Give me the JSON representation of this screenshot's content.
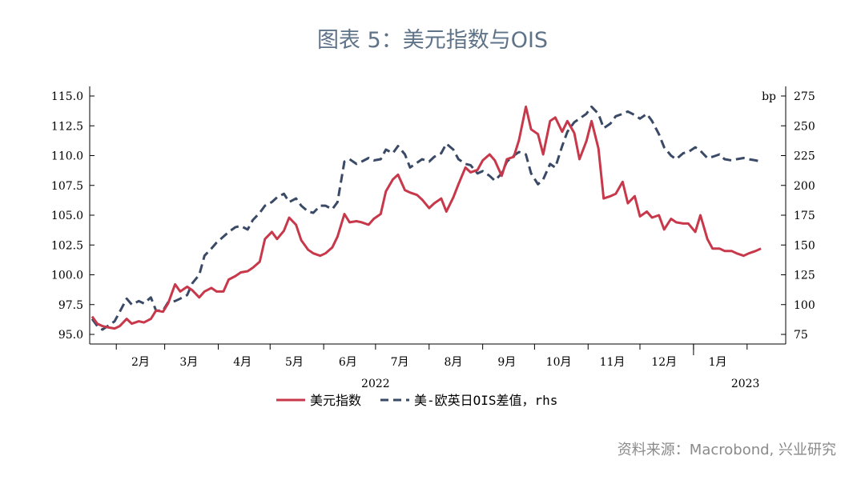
{
  "title": "图表 5：美元指数与OIS",
  "source": "资料来源：Macrobond, 兴业研究",
  "colors": {
    "dxy": "#c8384b",
    "ois": "#3a4a66",
    "title": "#5f7388"
  },
  "chart_data": {
    "type": "line",
    "y_left": {
      "min": 95,
      "max": 115,
      "ticks": [
        "95.0",
        "97.5",
        "100.0",
        "102.5",
        "105.0",
        "107.5",
        "110.0",
        "112.5",
        "115.0"
      ]
    },
    "y_right": {
      "min": 75,
      "max": 275,
      "ticks": [
        "75",
        "100",
        "125",
        "150",
        "175",
        "200",
        "225",
        "250",
        "275"
      ],
      "unit": "bp"
    },
    "x_domain": [
      "2022-01-18",
      "2023-02-15"
    ],
    "month_labels": [
      {
        "label": "2月",
        "date": "2022-02-15"
      },
      {
        "label": "3月",
        "date": "2022-03-15"
      },
      {
        "label": "4月",
        "date": "2022-04-15"
      },
      {
        "label": "5月",
        "date": "2022-05-15"
      },
      {
        "label": "6月",
        "date": "2022-06-15"
      },
      {
        "label": "7月",
        "date": "2022-07-15"
      },
      {
        "label": "8月",
        "date": "2022-08-15"
      },
      {
        "label": "9月",
        "date": "2022-09-15"
      },
      {
        "label": "10月",
        "date": "2022-10-15"
      },
      {
        "label": "11月",
        "date": "2022-11-15"
      },
      {
        "label": "12月",
        "date": "2022-12-15"
      },
      {
        "label": "1月",
        "date": "2023-01-15"
      }
    ],
    "month_ticks": [
      "2022-02-01",
      "2022-03-01",
      "2022-04-01",
      "2022-05-01",
      "2022-06-01",
      "2022-07-01",
      "2022-08-01",
      "2022-09-01",
      "2022-10-01",
      "2022-11-01",
      "2022-12-01",
      "2023-01-01",
      "2023-02-01"
    ],
    "year_labels": [
      {
        "label": "2022",
        "date": "2022-07-01"
      },
      {
        "label": "2023",
        "date": "2023-01-31"
      }
    ],
    "year_tick": "2023-01-01",
    "series": [
      {
        "name": "美元指数",
        "axis": "left",
        "style": "solid",
        "points": [
          [
            "2022-01-18",
            96.5
          ],
          [
            "2022-01-21",
            95.9
          ],
          [
            "2022-01-24",
            95.7
          ],
          [
            "2022-01-27",
            95.6
          ],
          [
            "2022-01-31",
            95.5
          ],
          [
            "2022-02-03",
            95.7
          ],
          [
            "2022-02-07",
            96.3
          ],
          [
            "2022-02-10",
            95.9
          ],
          [
            "2022-02-14",
            96.1
          ],
          [
            "2022-02-17",
            96.0
          ],
          [
            "2022-02-21",
            96.3
          ],
          [
            "2022-02-24",
            97.0
          ],
          [
            "2022-02-28",
            96.9
          ],
          [
            "2022-03-03",
            97.6
          ],
          [
            "2022-03-07",
            99.2
          ],
          [
            "2022-03-10",
            98.6
          ],
          [
            "2022-03-14",
            99.0
          ],
          [
            "2022-03-17",
            98.7
          ],
          [
            "2022-03-21",
            98.1
          ],
          [
            "2022-03-24",
            98.6
          ],
          [
            "2022-03-28",
            98.9
          ],
          [
            "2022-03-31",
            98.6
          ],
          [
            "2022-04-04",
            98.6
          ],
          [
            "2022-04-07",
            99.6
          ],
          [
            "2022-04-11",
            99.9
          ],
          [
            "2022-04-14",
            100.2
          ],
          [
            "2022-04-18",
            100.3
          ],
          [
            "2022-04-21",
            100.6
          ],
          [
            "2022-04-25",
            101.1
          ],
          [
            "2022-04-28",
            103.0
          ],
          [
            "2022-05-02",
            103.6
          ],
          [
            "2022-05-05",
            103.0
          ],
          [
            "2022-05-09",
            103.7
          ],
          [
            "2022-05-12",
            104.8
          ],
          [
            "2022-05-16",
            104.2
          ],
          [
            "2022-05-19",
            102.9
          ],
          [
            "2022-05-23",
            102.1
          ],
          [
            "2022-05-26",
            101.8
          ],
          [
            "2022-05-30",
            101.6
          ],
          [
            "2022-06-02",
            101.8
          ],
          [
            "2022-06-06",
            102.3
          ],
          [
            "2022-06-09",
            103.2
          ],
          [
            "2022-06-13",
            105.1
          ],
          [
            "2022-06-16",
            104.4
          ],
          [
            "2022-06-20",
            104.5
          ],
          [
            "2022-06-23",
            104.4
          ],
          [
            "2022-06-27",
            104.2
          ],
          [
            "2022-06-30",
            104.7
          ],
          [
            "2022-07-04",
            105.1
          ],
          [
            "2022-07-07",
            107.0
          ],
          [
            "2022-07-11",
            108.0
          ],
          [
            "2022-07-14",
            108.4
          ],
          [
            "2022-07-18",
            107.1
          ],
          [
            "2022-07-21",
            106.9
          ],
          [
            "2022-07-25",
            106.7
          ],
          [
            "2022-07-28",
            106.3
          ],
          [
            "2022-08-01",
            105.6
          ],
          [
            "2022-08-04",
            106.0
          ],
          [
            "2022-08-08",
            106.4
          ],
          [
            "2022-08-11",
            105.3
          ],
          [
            "2022-08-15",
            106.5
          ],
          [
            "2022-08-18",
            107.6
          ],
          [
            "2022-08-22",
            109.0
          ],
          [
            "2022-08-25",
            108.6
          ],
          [
            "2022-08-29",
            108.8
          ],
          [
            "2022-09-01",
            109.6
          ],
          [
            "2022-09-05",
            110.1
          ],
          [
            "2022-09-08",
            109.6
          ],
          [
            "2022-09-12",
            108.3
          ],
          [
            "2022-09-15",
            109.7
          ],
          [
            "2022-09-19",
            109.9
          ],
          [
            "2022-09-22",
            111.3
          ],
          [
            "2022-09-26",
            114.1
          ],
          [
            "2022-09-29",
            112.2
          ],
          [
            "2022-10-03",
            111.8
          ],
          [
            "2022-10-06",
            110.1
          ],
          [
            "2022-10-10",
            112.9
          ],
          [
            "2022-10-13",
            113.2
          ],
          [
            "2022-10-17",
            112.0
          ],
          [
            "2022-10-20",
            112.9
          ],
          [
            "2022-10-24",
            111.9
          ],
          [
            "2022-10-27",
            109.7
          ],
          [
            "2022-10-31",
            111.2
          ],
          [
            "2022-11-03",
            112.9
          ],
          [
            "2022-11-07",
            110.6
          ],
          [
            "2022-11-10",
            106.4
          ],
          [
            "2022-11-14",
            106.6
          ],
          [
            "2022-11-17",
            106.8
          ],
          [
            "2022-11-21",
            107.8
          ],
          [
            "2022-11-24",
            106.0
          ],
          [
            "2022-11-28",
            106.6
          ],
          [
            "2022-12-01",
            104.9
          ],
          [
            "2022-12-05",
            105.3
          ],
          [
            "2022-12-08",
            104.8
          ],
          [
            "2022-12-12",
            105.0
          ],
          [
            "2022-12-15",
            103.8
          ],
          [
            "2022-12-19",
            104.7
          ],
          [
            "2022-12-22",
            104.4
          ],
          [
            "2022-12-26",
            104.3
          ],
          [
            "2022-12-29",
            104.3
          ],
          [
            "2023-01-02",
            103.6
          ],
          [
            "2023-01-05",
            105.0
          ],
          [
            "2023-01-09",
            103.0
          ],
          [
            "2023-01-12",
            102.2
          ],
          [
            "2023-01-16",
            102.2
          ],
          [
            "2023-01-19",
            102.0
          ],
          [
            "2023-01-23",
            102.0
          ],
          [
            "2023-01-26",
            101.8
          ],
          [
            "2023-01-30",
            101.6
          ],
          [
            "2023-02-02",
            101.8
          ],
          [
            "2023-02-06",
            102.0
          ],
          [
            "2023-02-09",
            102.2
          ]
        ]
      },
      {
        "name": "美-欧英日OIS差值，rhs",
        "axis": "right",
        "style": "dashed",
        "points": [
          [
            "2022-01-18",
            88
          ],
          [
            "2022-01-21",
            82
          ],
          [
            "2022-01-24",
            79
          ],
          [
            "2022-01-27",
            82
          ],
          [
            "2022-01-31",
            86
          ],
          [
            "2022-02-03",
            94
          ],
          [
            "2022-02-07",
            105
          ],
          [
            "2022-02-10",
            100
          ],
          [
            "2022-02-14",
            103
          ],
          [
            "2022-02-17",
            101
          ],
          [
            "2022-02-21",
            106
          ],
          [
            "2022-02-24",
            95
          ],
          [
            "2022-02-28",
            95
          ],
          [
            "2022-03-03",
            102
          ],
          [
            "2022-03-07",
            103
          ],
          [
            "2022-03-10",
            105
          ],
          [
            "2022-03-14",
            108
          ],
          [
            "2022-03-17",
            118
          ],
          [
            "2022-03-21",
            125
          ],
          [
            "2022-03-24",
            141
          ],
          [
            "2022-03-28",
            147
          ],
          [
            "2022-03-31",
            152
          ],
          [
            "2022-04-04",
            157
          ],
          [
            "2022-04-07",
            161
          ],
          [
            "2022-04-11",
            165
          ],
          [
            "2022-04-14",
            166
          ],
          [
            "2022-04-18",
            163
          ],
          [
            "2022-04-21",
            171
          ],
          [
            "2022-04-25",
            177
          ],
          [
            "2022-04-28",
            183
          ],
          [
            "2022-05-02",
            186
          ],
          [
            "2022-05-05",
            190
          ],
          [
            "2022-05-09",
            193
          ],
          [
            "2022-05-12",
            186
          ],
          [
            "2022-05-16",
            189
          ],
          [
            "2022-05-19",
            183
          ],
          [
            "2022-05-23",
            178
          ],
          [
            "2022-05-26",
            177
          ],
          [
            "2022-05-30",
            183
          ],
          [
            "2022-06-02",
            183
          ],
          [
            "2022-06-06",
            180
          ],
          [
            "2022-06-09",
            186
          ],
          [
            "2022-06-13",
            220
          ],
          [
            "2022-06-16",
            222
          ],
          [
            "2022-06-20",
            218
          ],
          [
            "2022-06-23",
            220
          ],
          [
            "2022-06-27",
            223
          ],
          [
            "2022-06-30",
            221
          ],
          [
            "2022-07-04",
            222
          ],
          [
            "2022-07-07",
            230
          ],
          [
            "2022-07-11",
            227
          ],
          [
            "2022-07-14",
            233
          ],
          [
            "2022-07-18",
            226
          ],
          [
            "2022-07-21",
            215
          ],
          [
            "2022-07-25",
            219
          ],
          [
            "2022-07-28",
            222
          ],
          [
            "2022-08-01",
            220
          ],
          [
            "2022-08-04",
            224
          ],
          [
            "2022-08-08",
            227
          ],
          [
            "2022-08-11",
            235
          ],
          [
            "2022-08-15",
            230
          ],
          [
            "2022-08-18",
            222
          ],
          [
            "2022-08-22",
            218
          ],
          [
            "2022-08-25",
            217
          ],
          [
            "2022-08-29",
            210
          ],
          [
            "2022-09-01",
            212
          ],
          [
            "2022-09-05",
            208
          ],
          [
            "2022-09-08",
            204
          ],
          [
            "2022-09-12",
            210
          ],
          [
            "2022-09-15",
            220
          ],
          [
            "2022-09-19",
            225
          ],
          [
            "2022-09-22",
            228
          ],
          [
            "2022-09-26",
            226
          ],
          [
            "2022-09-29",
            210
          ],
          [
            "2022-10-03",
            201
          ],
          [
            "2022-10-06",
            205
          ],
          [
            "2022-10-10",
            218
          ],
          [
            "2022-10-13",
            215
          ],
          [
            "2022-10-17",
            233
          ],
          [
            "2022-10-20",
            245
          ],
          [
            "2022-10-24",
            253
          ],
          [
            "2022-10-27",
            256
          ],
          [
            "2022-10-31",
            260
          ],
          [
            "2022-11-03",
            266
          ],
          [
            "2022-11-07",
            260
          ],
          [
            "2022-11-10",
            248
          ],
          [
            "2022-11-14",
            252
          ],
          [
            "2022-11-17",
            258
          ],
          [
            "2022-11-21",
            260
          ],
          [
            "2022-11-24",
            262
          ],
          [
            "2022-11-28",
            259
          ],
          [
            "2022-12-01",
            256
          ],
          [
            "2022-12-05",
            260
          ],
          [
            "2022-12-08",
            254
          ],
          [
            "2022-12-12",
            243
          ],
          [
            "2022-12-15",
            232
          ],
          [
            "2022-12-19",
            225
          ],
          [
            "2022-12-22",
            222
          ],
          [
            "2022-12-26",
            227
          ],
          [
            "2022-12-29",
            228
          ],
          [
            "2023-01-02",
            232
          ],
          [
            "2023-01-05",
            229
          ],
          [
            "2023-01-09",
            223
          ],
          [
            "2023-01-12",
            224
          ],
          [
            "2023-01-16",
            226
          ],
          [
            "2023-01-19",
            222
          ],
          [
            "2023-01-23",
            221
          ],
          [
            "2023-01-26",
            222
          ],
          [
            "2023-01-30",
            223
          ],
          [
            "2023-02-02",
            222
          ],
          [
            "2023-02-06",
            221
          ],
          [
            "2023-02-09",
            220
          ]
        ]
      }
    ]
  }
}
